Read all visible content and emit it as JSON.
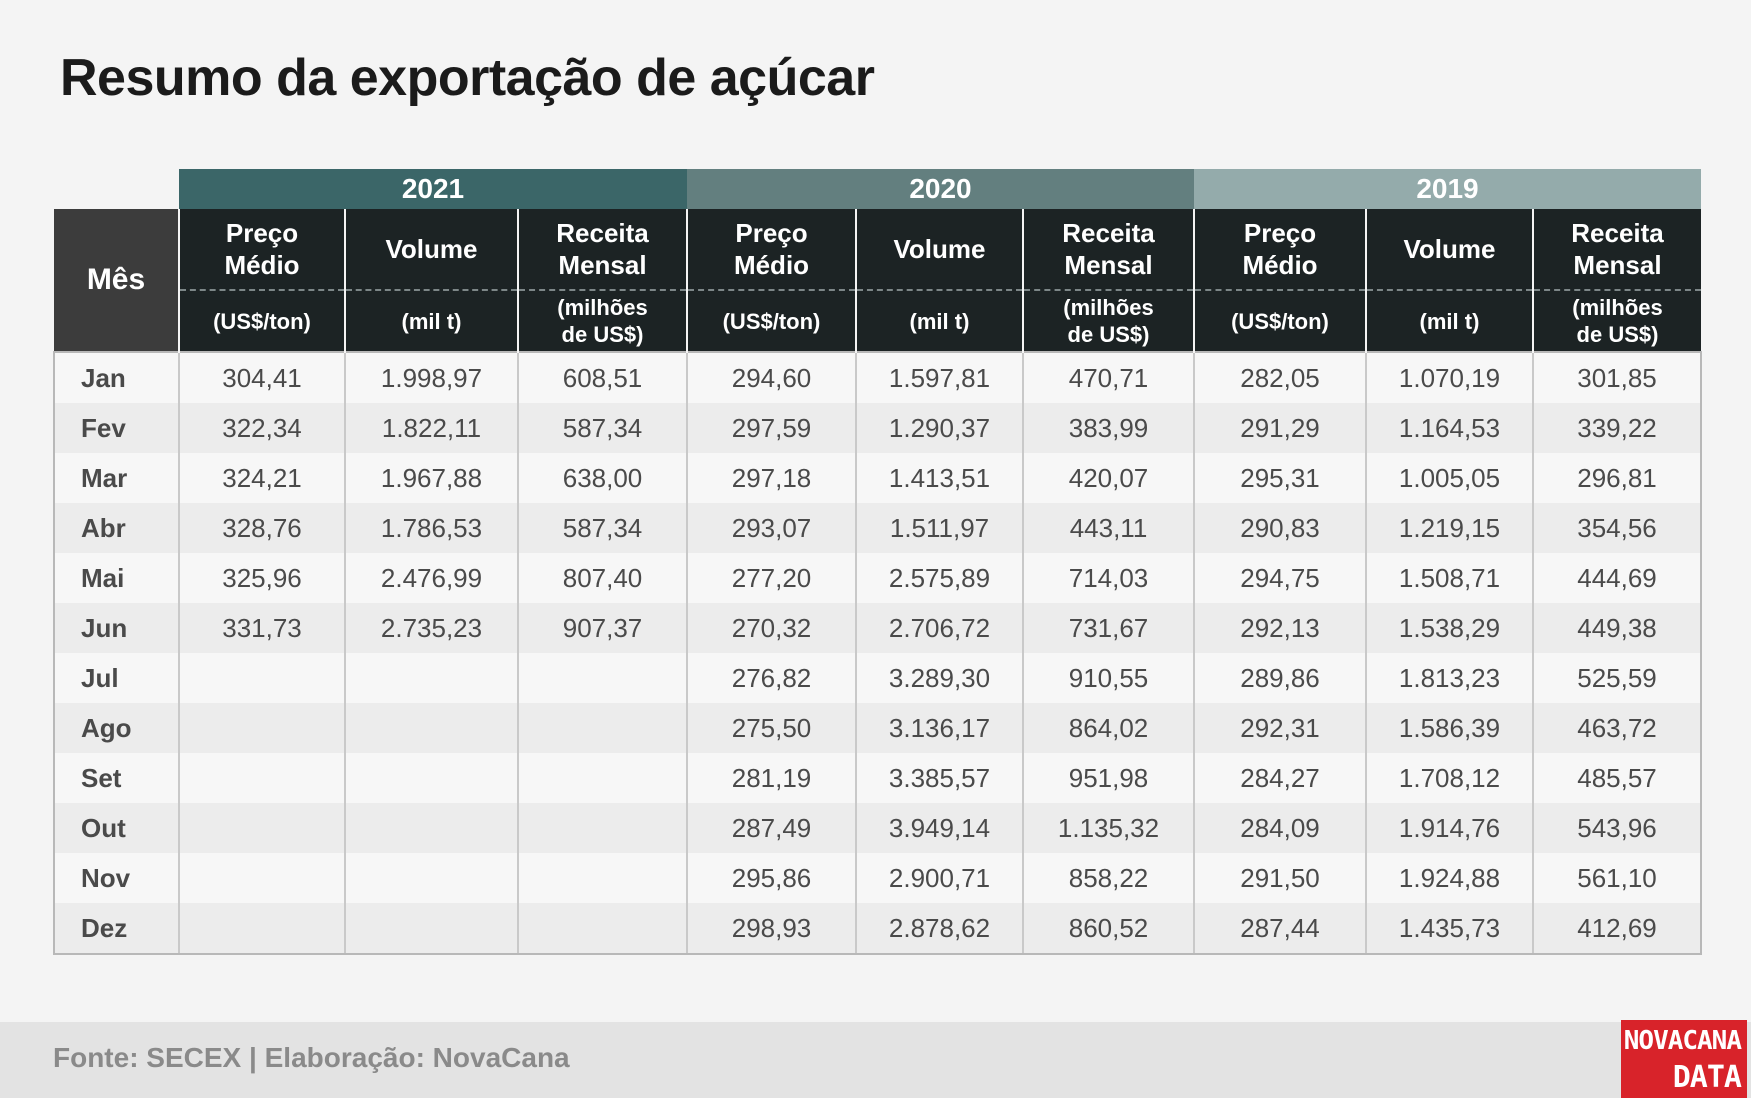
{
  "title": "Resumo da exportação de açúcar",
  "table": {
    "month_header": "Mês",
    "years": [
      "2021",
      "2020",
      "2019"
    ],
    "columns": [
      {
        "label": "Preço\nMédio",
        "unit": "(US$/ton)"
      },
      {
        "label": "Volume",
        "unit": "(mil t)"
      },
      {
        "label": "Receita\nMensal",
        "unit": "(milhões\nde US$)"
      }
    ],
    "rows": [
      {
        "month": "Jan",
        "values": [
          "304,41",
          "1.998,97",
          "608,51",
          "294,60",
          "1.597,81",
          "470,71",
          "282,05",
          "1.070,19",
          "301,85"
        ]
      },
      {
        "month": "Fev",
        "values": [
          "322,34",
          "1.822,11",
          "587,34",
          "297,59",
          "1.290,37",
          "383,99",
          "291,29",
          "1.164,53",
          "339,22"
        ]
      },
      {
        "month": "Mar",
        "values": [
          "324,21",
          "1.967,88",
          "638,00",
          "297,18",
          "1.413,51",
          "420,07",
          "295,31",
          "1.005,05",
          "296,81"
        ]
      },
      {
        "month": "Abr",
        "values": [
          "328,76",
          "1.786,53",
          "587,34",
          "293,07",
          "1.511,97",
          "443,11",
          "290,83",
          "1.219,15",
          "354,56"
        ]
      },
      {
        "month": "Mai",
        "values": [
          "325,96",
          "2.476,99",
          "807,40",
          "277,20",
          "2.575,89",
          "714,03",
          "294,75",
          "1.508,71",
          "444,69"
        ]
      },
      {
        "month": "Jun",
        "values": [
          "331,73",
          "2.735,23",
          "907,37",
          "270,32",
          "2.706,72",
          "731,67",
          "292,13",
          "1.538,29",
          "449,38"
        ]
      },
      {
        "month": "Jul",
        "values": [
          "",
          "",
          "",
          "276,82",
          "3.289,30",
          "910,55",
          "289,86",
          "1.813,23",
          "525,59"
        ]
      },
      {
        "month": "Ago",
        "values": [
          "",
          "",
          "",
          "275,50",
          "3.136,17",
          "864,02",
          "292,31",
          "1.586,39",
          "463,72"
        ]
      },
      {
        "month": "Set",
        "values": [
          "",
          "",
          "",
          "281,19",
          "3.385,57",
          "951,98",
          "284,27",
          "1.708,12",
          "485,57"
        ]
      },
      {
        "month": "Out",
        "values": [
          "",
          "",
          "",
          "287,49",
          "3.949,14",
          "1.135,32",
          "284,09",
          "1.914,76",
          "543,96"
        ]
      },
      {
        "month": "Nov",
        "values": [
          "",
          "",
          "",
          "295,86",
          "2.900,71",
          "858,22",
          "291,50",
          "1.924,88",
          "561,10"
        ]
      },
      {
        "month": "Dez",
        "values": [
          "",
          "",
          "",
          "298,93",
          "2.878,62",
          "860,52",
          "287,44",
          "1.435,73",
          "412,69"
        ]
      }
    ]
  },
  "footer": {
    "source": "Fonte: SECEX | Elaboração: NovaCana"
  },
  "logo": {
    "line1": "NOVACANA",
    "line2": "DATA"
  }
}
